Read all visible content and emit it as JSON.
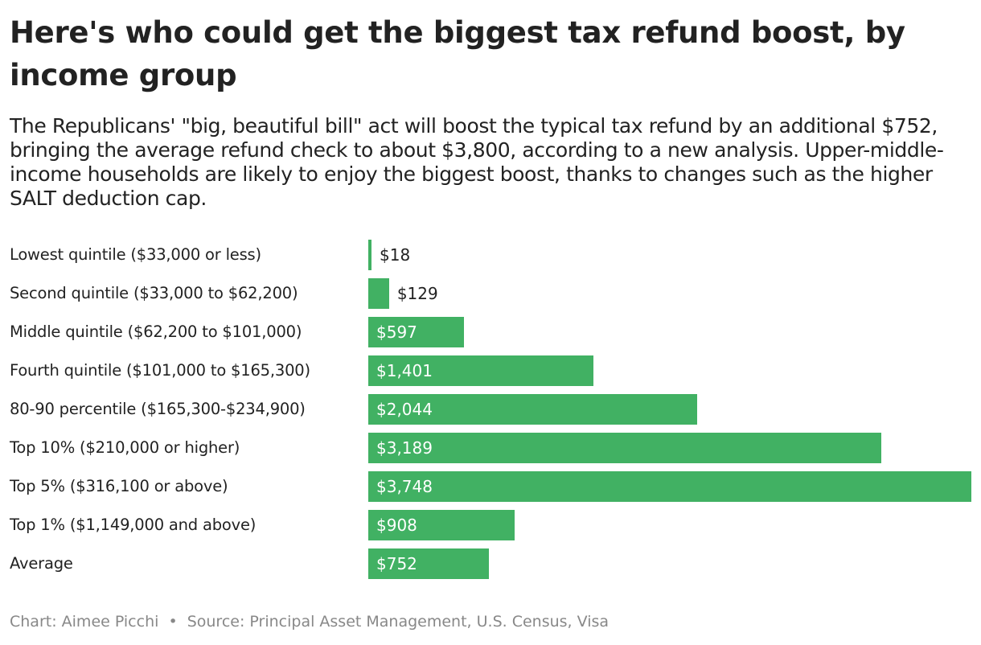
{
  "title": "Here's who could get the biggest tax refund boost, by income group",
  "subtitle": "The Republicans' \"big, beautiful bill\" act will boost the typical tax refund by an additional $752, bringing the average refund check to about $3,800, according to a new analysis. Upper-middle-income households are likely to enjoy the biggest boost, thanks to changes such as the higher SALT deduction cap.",
  "colors": {
    "bar": "#41b163",
    "text": "#222222",
    "footer": "#888888"
  },
  "chart_data": {
    "type": "bar",
    "orientation": "horizontal",
    "categories": [
      "Lowest quintile ($33,000 or less)",
      "Second quintile ($33,000 to $62,200)",
      "Middle quintile ($62,200 to $101,000)",
      "Fourth quintile ($101,000 to $165,300)",
      "80-90 percentile ($165,300-$234,900)",
      "Top 10% ($210,000 or higher)",
      "Top 5% ($316,100 or above)",
      "Top 1% ($1,149,000 and above)",
      "Average"
    ],
    "values": [
      18,
      129,
      597,
      1401,
      2044,
      3189,
      3748,
      908,
      752
    ],
    "data_labels": [
      "$18",
      "$129",
      "$597",
      "$1,401",
      "$2,044",
      "$3,189",
      "$3,748",
      "$908",
      "$752"
    ],
    "xlim": [
      0,
      3748
    ],
    "grid": false
  },
  "footer": {
    "credit": "Chart: Aimee Picchi",
    "separator": "•",
    "source": "Source: Principal Asset Management, U.S. Census, Visa"
  }
}
